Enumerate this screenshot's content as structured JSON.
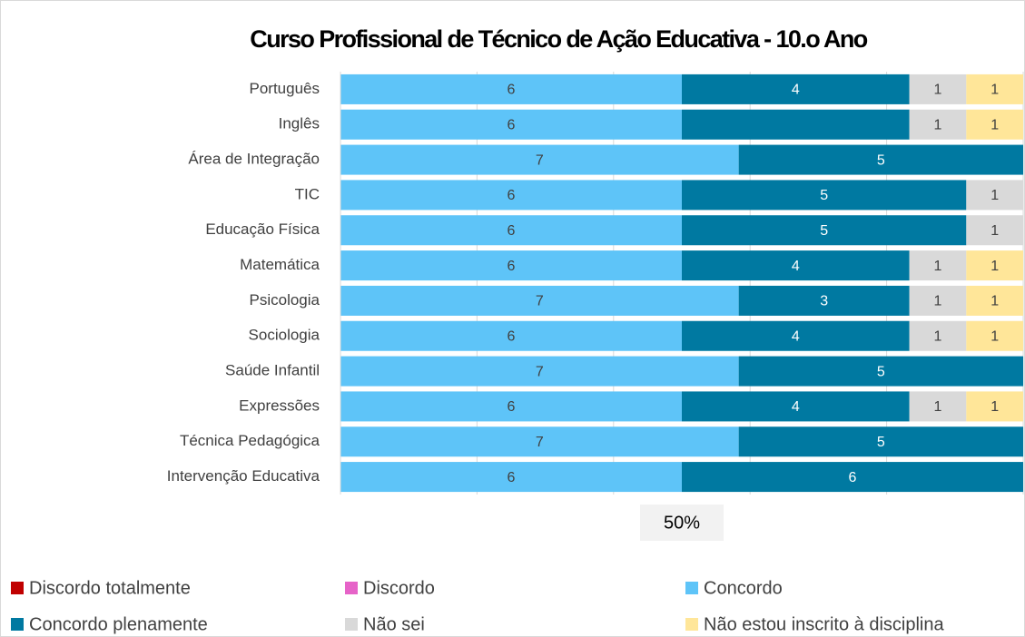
{
  "chart_data": {
    "type": "bar",
    "orientation": "horizontal",
    "stacked": "percent",
    "title": "Curso Profissional de Técnico de Ação Educativa - 10.o Ano",
    "categories": [
      "Português",
      "Inglês",
      "Área de Integração",
      "TIC",
      "Educação Física",
      "Matemática",
      "Psicologia",
      "Sociologia",
      "Saúde Infantil",
      "Expressões",
      "Técnica Pedagógica",
      "Intervenção Educativa"
    ],
    "series": [
      {
        "name": "Discordo totalmente",
        "color": "#c00000",
        "values": [
          0,
          0,
          0,
          0,
          0,
          0,
          0,
          0,
          0,
          0,
          0,
          0
        ]
      },
      {
        "name": "Discordo",
        "color": "#e663c8",
        "values": [
          0,
          0,
          0,
          0,
          0,
          0,
          0,
          0,
          0,
          0,
          0,
          0
        ]
      },
      {
        "name": "Concordo",
        "color": "#5ec4f8",
        "values": [
          6,
          6,
          7,
          6,
          6,
          6,
          7,
          6,
          7,
          6,
          7,
          6
        ]
      },
      {
        "name": "Concordo plenamente",
        "color": "#0079a1",
        "values": [
          4,
          4,
          5,
          5,
          5,
          4,
          3,
          4,
          5,
          4,
          5,
          6
        ],
        "value_labels": [
          "4",
          null,
          "5",
          "5",
          "5",
          "4",
          "3",
          "4",
          "5",
          "4",
          "5",
          "6"
        ]
      },
      {
        "name": "Não sei",
        "color": "#d9d9d9",
        "values": [
          1,
          1,
          0,
          1,
          1,
          1,
          1,
          1,
          0,
          1,
          0,
          0
        ]
      },
      {
        "name": "Não estou inscrito à disciplina",
        "color": "#ffe699",
        "values": [
          1,
          1,
          0,
          0,
          0,
          1,
          1,
          1,
          0,
          1,
          0,
          0
        ]
      }
    ],
    "xlim": [
      0,
      100
    ],
    "xticks": [
      0,
      20,
      40,
      60,
      80,
      100
    ],
    "grid": true,
    "annotation": {
      "text": "50%",
      "x": 50
    },
    "legend": "bottom"
  }
}
